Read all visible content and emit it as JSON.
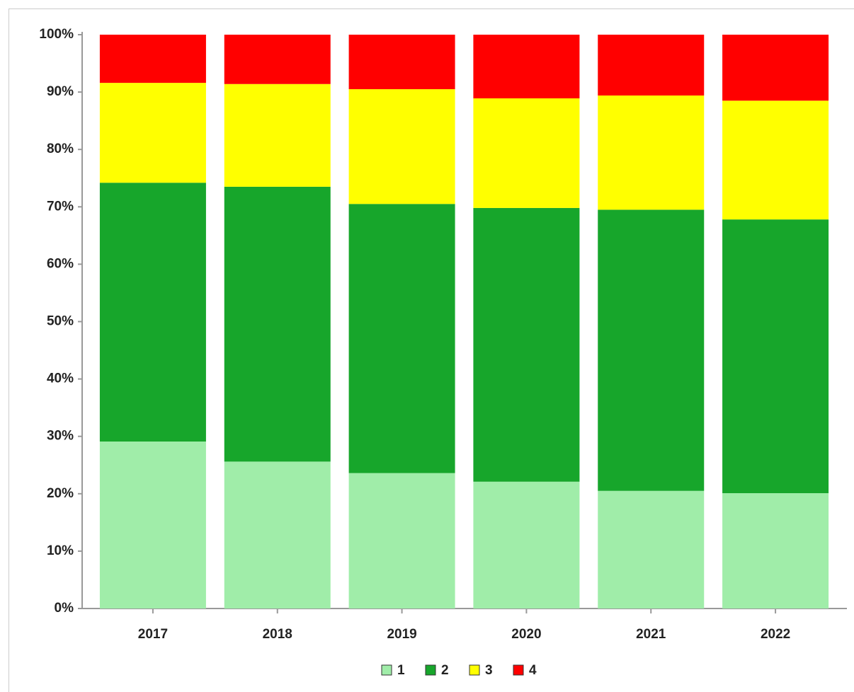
{
  "chart_data": {
    "type": "stacked_bar",
    "categories": [
      "2017",
      "2018",
      "2019",
      "2020",
      "2021",
      "2022"
    ],
    "series": [
      {
        "name": "1",
        "color": "#a0eda9",
        "values": [
          29.1,
          25.6,
          23.6,
          22.1,
          20.5,
          20.1
        ]
      },
      {
        "name": "2",
        "color": "#17a62b",
        "values": [
          45.1,
          47.9,
          46.9,
          47.7,
          49.0,
          47.7
        ]
      },
      {
        "name": "3",
        "color": "#ffff00",
        "values": [
          17.4,
          17.9,
          20.0,
          19.1,
          19.9,
          20.7
        ]
      },
      {
        "name": "4",
        "color": "#ff0000",
        "values": [
          8.4,
          8.6,
          9.5,
          11.1,
          10.6,
          11.5
        ]
      }
    ],
    "ylim": [
      0,
      100
    ],
    "yticks": [
      {
        "value": 0,
        "label": "0%"
      },
      {
        "value": 10,
        "label": "10%"
      },
      {
        "value": 20,
        "label": "20%"
      },
      {
        "value": 30,
        "label": "30%"
      },
      {
        "value": 40,
        "label": "40%"
      },
      {
        "value": 50,
        "label": "50%"
      },
      {
        "value": 60,
        "label": "60%"
      },
      {
        "value": 70,
        "label": "70%"
      },
      {
        "value": 80,
        "label": "80%"
      },
      {
        "value": 90,
        "label": "90%"
      },
      {
        "value": 100,
        "label": "100%"
      }
    ],
    "legend": "bottom"
  }
}
